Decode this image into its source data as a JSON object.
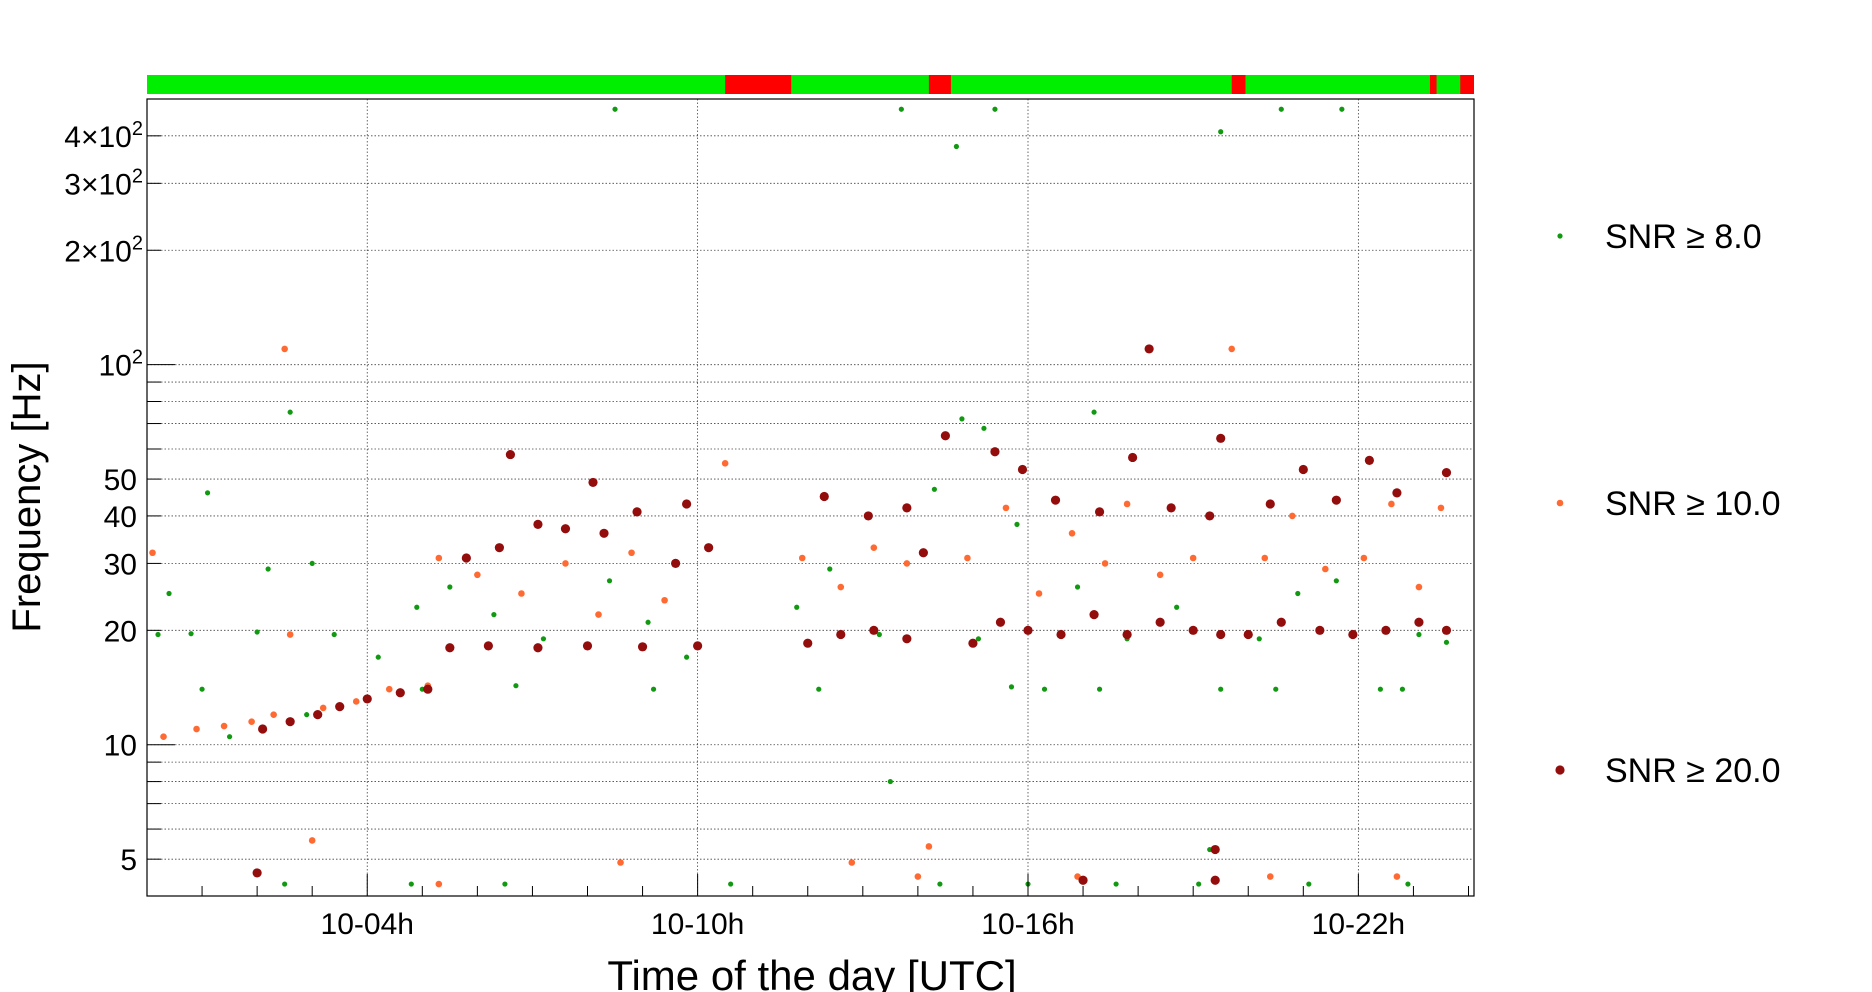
{
  "chart_data": {
    "type": "scatter",
    "title": "",
    "xlabel": "Time of the day [UTC]",
    "ylabel": "Frequency [Hz]",
    "xscale": "time (hours)",
    "yscale": "log",
    "xlim": [
      0.0,
      24.1
    ],
    "ylim": [
      4.0,
      500
    ],
    "x_ticks": [
      {
        "x": 4,
        "label": "10-04h"
      },
      {
        "x": 10,
        "label": "10-10h"
      },
      {
        "x": 16,
        "label": "10-16h"
      },
      {
        "x": 22,
        "label": "10-22h"
      }
    ],
    "y_ticks": [
      {
        "y": 5,
        "label": "5"
      },
      {
        "y": 10,
        "label": "10"
      },
      {
        "y": 20,
        "label": "20"
      },
      {
        "y": 30,
        "label": "30"
      },
      {
        "y": 40,
        "label": "40"
      },
      {
        "y": 50,
        "label": "50"
      },
      {
        "y": 100,
        "label": "10",
        "exp": "2"
      },
      {
        "y": 200,
        "label": "2×10",
        "exp": "2"
      },
      {
        "y": 300,
        "label": "3×10",
        "exp": "2"
      },
      {
        "y": 400,
        "label": "4×10",
        "exp": "2"
      }
    ],
    "grid": true,
    "legend_position": "right",
    "segment_bar": {
      "ok_color": "#00ee00",
      "bad_color": "#ff0000",
      "bad_segments": [
        [
          10.5,
          11.7
        ],
        [
          14.2,
          14.6
        ],
        [
          19.7,
          19.95
        ],
        [
          23.3,
          23.42
        ],
        [
          23.85,
          24.1
        ]
      ]
    },
    "series": [
      {
        "name": "SNR ≥ 8.0",
        "color": "#119911",
        "marker_size": 2.6,
        "points": [
          [
            0.2,
            19.5
          ],
          [
            0.4,
            25
          ],
          [
            0.8,
            19.6
          ],
          [
            1.1,
            46
          ],
          [
            1.5,
            10.5
          ],
          [
            2.0,
            19.8
          ],
          [
            2.2,
            29
          ],
          [
            2.6,
            75
          ],
          [
            3.0,
            30
          ],
          [
            3.4,
            19.5
          ],
          [
            3.8,
            13
          ],
          [
            4.2,
            17
          ],
          [
            4.9,
            23
          ],
          [
            5.5,
            26
          ],
          [
            6.3,
            22
          ],
          [
            7.2,
            19
          ],
          [
            8.4,
            27
          ],
          [
            9.1,
            21
          ],
          [
            9.8,
            17
          ],
          [
            11.8,
            23
          ],
          [
            12.4,
            29
          ],
          [
            13.3,
            19.5
          ],
          [
            13.5,
            8
          ],
          [
            14.3,
            47
          ],
          [
            14.8,
            72
          ],
          [
            15.1,
            19
          ],
          [
            15.2,
            68
          ],
          [
            15.8,
            38
          ],
          [
            16.3,
            14
          ],
          [
            16.9,
            26
          ],
          [
            17.2,
            75
          ],
          [
            17.8,
            19
          ],
          [
            18.7,
            23
          ],
          [
            19.3,
            5.3
          ],
          [
            19.5,
            14
          ],
          [
            20.2,
            19
          ],
          [
            20.9,
            25
          ],
          [
            21.6,
            27
          ],
          [
            22.4,
            14
          ],
          [
            23.1,
            19.5
          ],
          [
            23.6,
            18.6
          ],
          [
            8.5,
            470
          ],
          [
            13.7,
            470
          ],
          [
            14.7,
            375
          ],
          [
            15.4,
            470
          ],
          [
            19.5,
            410
          ],
          [
            20.6,
            470
          ],
          [
            21.7,
            470
          ],
          [
            2.5,
            4.3
          ],
          [
            4.8,
            4.3
          ],
          [
            6.5,
            4.3
          ],
          [
            10.6,
            4.3
          ],
          [
            14.4,
            4.3
          ],
          [
            16.0,
            4.3
          ],
          [
            17.6,
            4.3
          ],
          [
            19.1,
            4.3
          ],
          [
            21.1,
            4.3
          ],
          [
            22.9,
            4.3
          ],
          [
            1.0,
            14
          ],
          [
            2.9,
            12
          ],
          [
            5.0,
            14
          ],
          [
            6.7,
            14.3
          ],
          [
            9.2,
            14
          ],
          [
            12.2,
            14
          ],
          [
            15.7,
            14.2
          ],
          [
            17.3,
            14
          ],
          [
            20.5,
            14
          ],
          [
            22.8,
            14
          ]
        ]
      },
      {
        "name": "SNR ≥ 10.0",
        "color": "#ff6a33",
        "marker_size": 3.3,
        "points": [
          [
            0.1,
            32
          ],
          [
            0.3,
            10.5
          ],
          [
            0.9,
            11
          ],
          [
            1.4,
            11.2
          ],
          [
            1.9,
            11.5
          ],
          [
            2.3,
            12
          ],
          [
            2.5,
            110
          ],
          [
            2.6,
            19.5
          ],
          [
            3.2,
            12.5
          ],
          [
            3.8,
            13
          ],
          [
            4.4,
            14
          ],
          [
            5.1,
            14.3
          ],
          [
            5.3,
            31
          ],
          [
            6.0,
            28
          ],
          [
            6.8,
            25
          ],
          [
            7.6,
            30
          ],
          [
            8.2,
            22
          ],
          [
            8.8,
            32
          ],
          [
            9.4,
            24
          ],
          [
            10.5,
            55
          ],
          [
            11.9,
            31
          ],
          [
            12.6,
            26
          ],
          [
            13.2,
            33
          ],
          [
            13.8,
            30
          ],
          [
            14.2,
            5.4
          ],
          [
            14.9,
            31
          ],
          [
            15.6,
            42
          ],
          [
            16.2,
            25
          ],
          [
            16.8,
            36
          ],
          [
            17.4,
            30
          ],
          [
            17.8,
            43
          ],
          [
            18.4,
            28
          ],
          [
            19.0,
            31
          ],
          [
            19.7,
            110
          ],
          [
            20.3,
            31
          ],
          [
            20.8,
            40
          ],
          [
            21.4,
            29
          ],
          [
            22.1,
            31
          ],
          [
            22.6,
            43
          ],
          [
            23.1,
            26
          ],
          [
            23.5,
            42
          ],
          [
            3.0,
            5.6
          ],
          [
            5.3,
            4.3
          ],
          [
            8.6,
            4.9
          ],
          [
            12.8,
            4.9
          ],
          [
            14.0,
            4.5
          ],
          [
            16.9,
            4.5
          ],
          [
            20.4,
            4.5
          ],
          [
            22.7,
            4.5
          ]
        ]
      },
      {
        "name": "SNR ≥ 20.0",
        "color": "#930d0d",
        "marker_size": 4.6,
        "points": [
          [
            2.1,
            11
          ],
          [
            2.6,
            11.5
          ],
          [
            3.1,
            12
          ],
          [
            3.5,
            12.6
          ],
          [
            4.0,
            13.2
          ],
          [
            4.6,
            13.7
          ],
          [
            5.1,
            14
          ],
          [
            5.5,
            18
          ],
          [
            6.2,
            18.2
          ],
          [
            7.1,
            18
          ],
          [
            8.0,
            18.2
          ],
          [
            9.0,
            18.1
          ],
          [
            10.0,
            18.2
          ],
          [
            5.8,
            31
          ],
          [
            6.4,
            33
          ],
          [
            7.1,
            38
          ],
          [
            7.6,
            37
          ],
          [
            8.3,
            36
          ],
          [
            8.9,
            41
          ],
          [
            9.6,
            30
          ],
          [
            10.2,
            33
          ],
          [
            6.6,
            58
          ],
          [
            8.1,
            49
          ],
          [
            9.8,
            43
          ],
          [
            12.0,
            18.5
          ],
          [
            12.6,
            19.5
          ],
          [
            13.2,
            20
          ],
          [
            13.8,
            19
          ],
          [
            12.3,
            45
          ],
          [
            13.1,
            40
          ],
          [
            13.8,
            42
          ],
          [
            14.1,
            32
          ],
          [
            14.5,
            65
          ],
          [
            15.0,
            18.5
          ],
          [
            15.5,
            21
          ],
          [
            16.0,
            20
          ],
          [
            16.6,
            19.5
          ],
          [
            17.2,
            22
          ],
          [
            17.8,
            19.5
          ],
          [
            18.4,
            21
          ],
          [
            19.0,
            20
          ],
          [
            19.5,
            19.5
          ],
          [
            15.4,
            59
          ],
          [
            15.9,
            53
          ],
          [
            16.5,
            44
          ],
          [
            17.3,
            41
          ],
          [
            17.9,
            57
          ],
          [
            18.6,
            42
          ],
          [
            19.3,
            40
          ],
          [
            18.2,
            110
          ],
          [
            19.5,
            64
          ],
          [
            20.0,
            19.5
          ],
          [
            20.6,
            21
          ],
          [
            21.3,
            20
          ],
          [
            21.9,
            19.5
          ],
          [
            22.5,
            20
          ],
          [
            23.1,
            21
          ],
          [
            23.6,
            20
          ],
          [
            20.4,
            43
          ],
          [
            21.0,
            53
          ],
          [
            21.6,
            44
          ],
          [
            22.2,
            56
          ],
          [
            22.7,
            46
          ],
          [
            23.6,
            52
          ],
          [
            19.4,
            5.3
          ],
          [
            2.0,
            4.6
          ],
          [
            17.0,
            4.4
          ],
          [
            19.4,
            4.4
          ]
        ]
      }
    ]
  }
}
